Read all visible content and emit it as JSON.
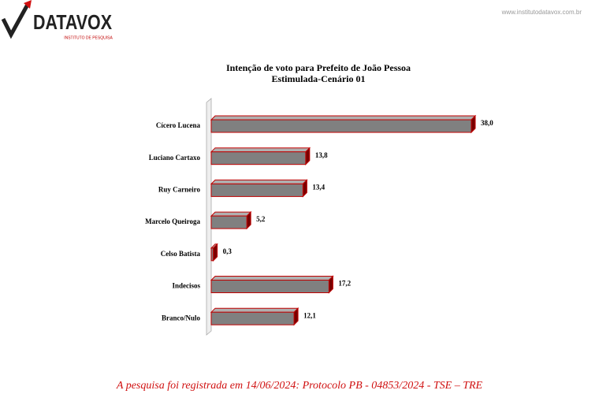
{
  "header": {
    "logo": "DATAVOX",
    "logo_subtitle": "INSTITUTO DE PESQUISA",
    "website": "www.institutodatavox.com.br"
  },
  "chart_data": {
    "type": "bar",
    "orientation": "horizontal",
    "title": "Intenção de voto para Prefeito de João Pessoa",
    "subtitle": "Estimulada-Cenário 01",
    "categories": [
      "Cícero Lucena",
      "Luciano Cartaxo",
      "Ruy Carneiro",
      "Marcelo Queiroga",
      "Celso Batista",
      "Indecisos",
      "Branco/Nulo"
    ],
    "values": [
      38.0,
      13.8,
      13.4,
      5.2,
      0.3,
      17.2,
      12.1
    ],
    "value_labels": [
      "38,0",
      "13,8",
      "13,4",
      "5,2",
      "0,3",
      "17,2",
      "12,1"
    ],
    "color": "#808080",
    "edge_color": "#c00000"
  },
  "footer": "A pesquisa foi registrada em 14/06/2024: Protocolo PB - 04853/2024 - TSE – TRE"
}
